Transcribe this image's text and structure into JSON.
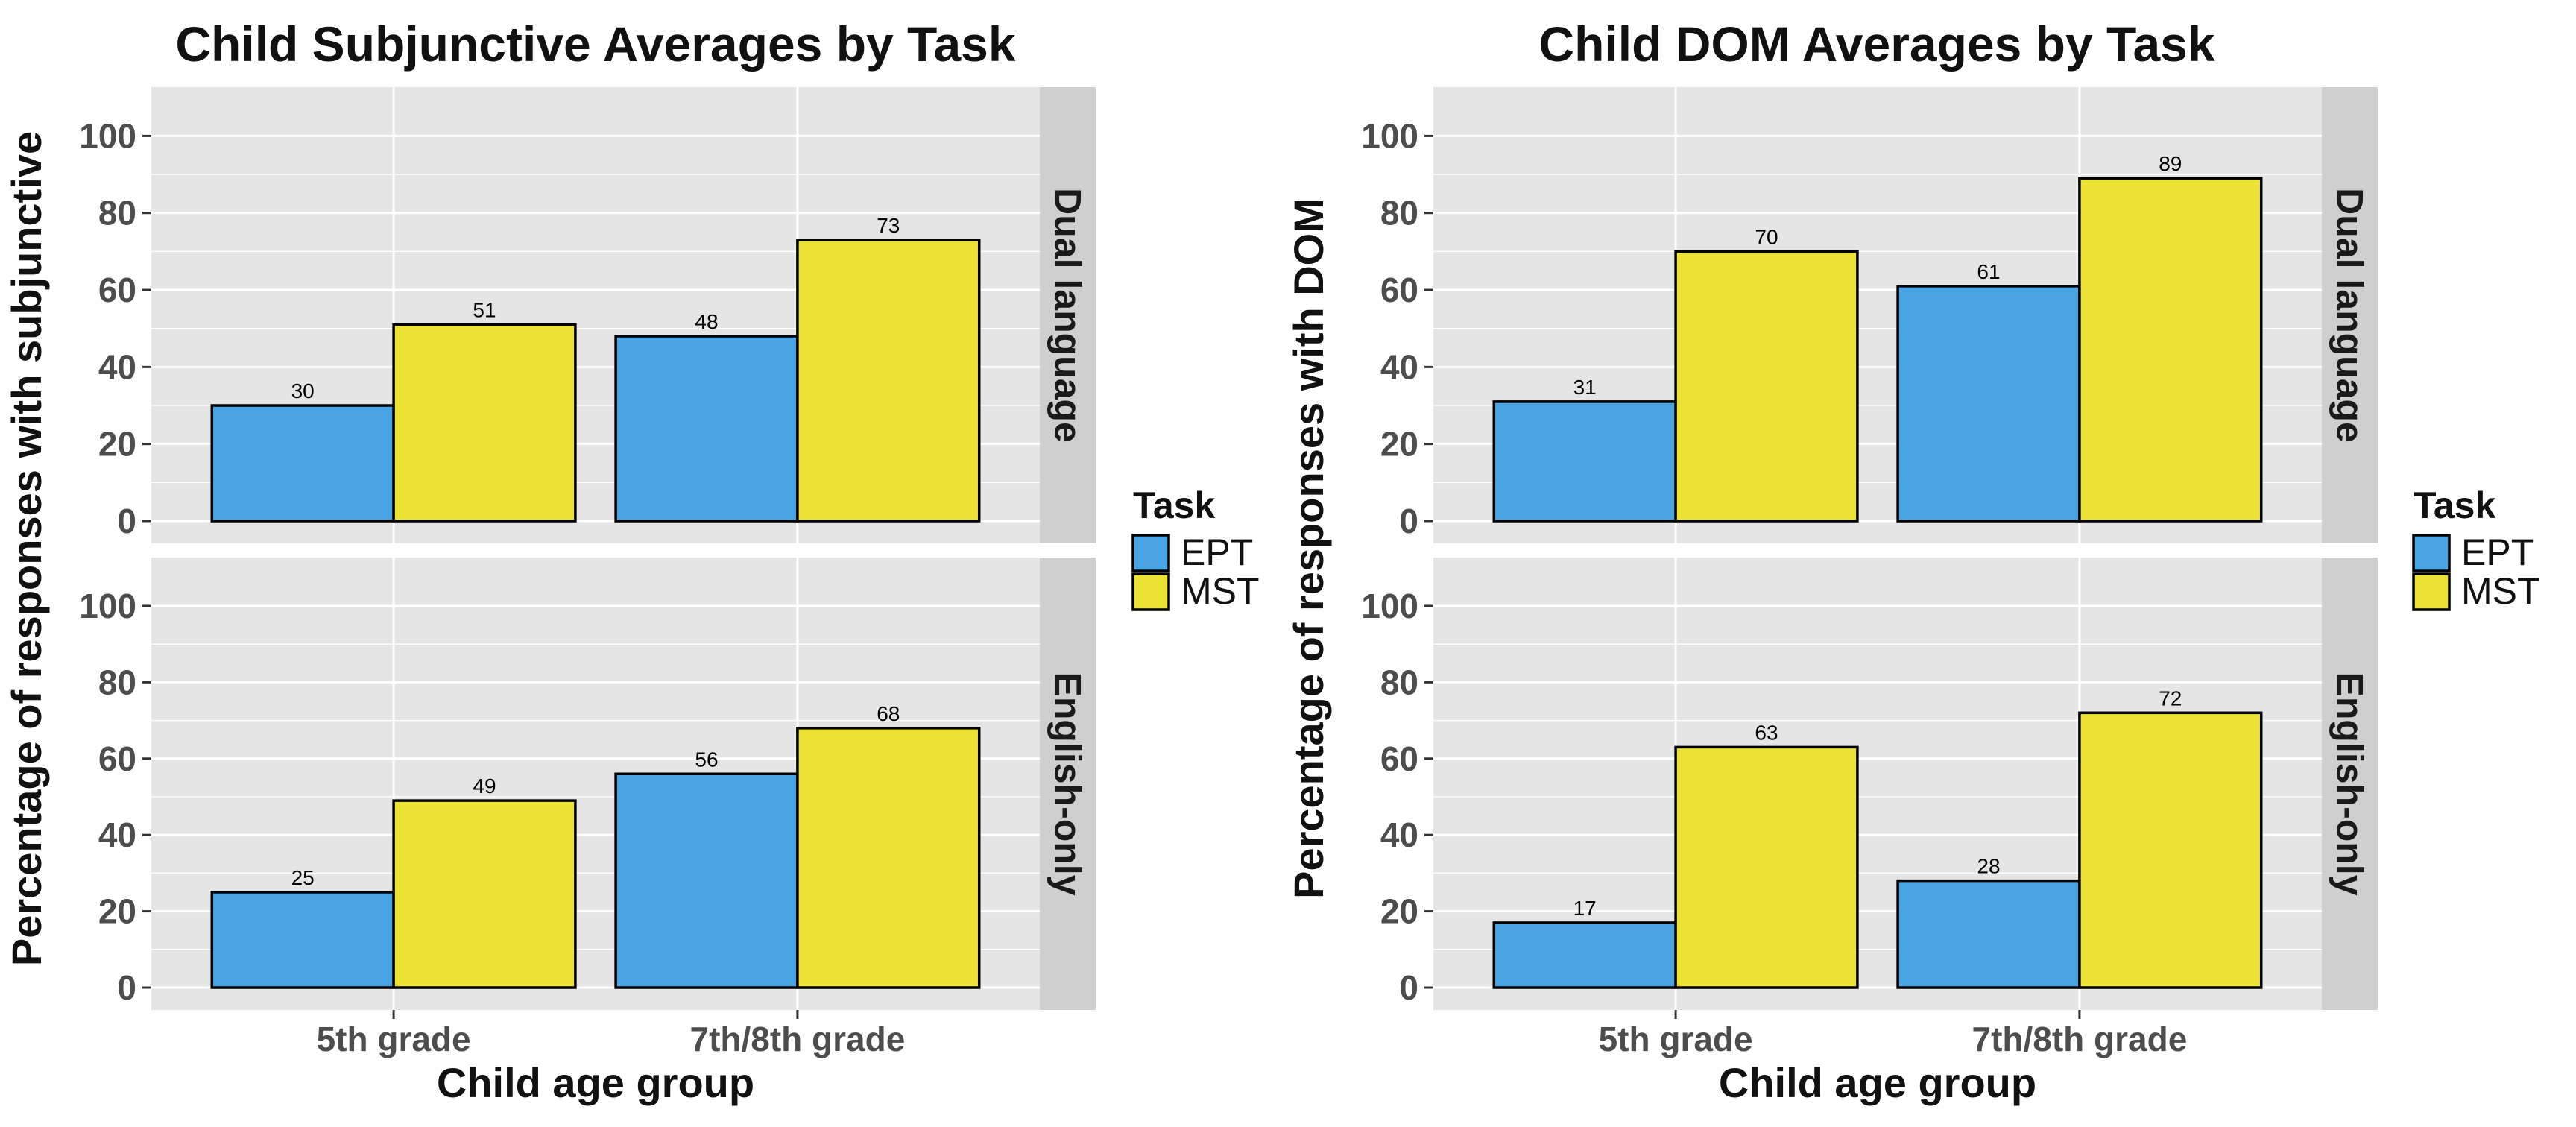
{
  "colors": {
    "EPT": "#48a4e2",
    "MST": "#ece135",
    "panel_bg": "#e5e5e5",
    "strip_bg": "#cfcfcf",
    "grid": "#ffffff",
    "text": "#222222",
    "axis_text": "#4d4d4d"
  },
  "chart_data": [
    {
      "type": "bar",
      "title": "Child Subjunctive Averages by Task",
      "xlabel": "Child age group",
      "ylabel": "Percentage of responses with subjunctive",
      "categories": [
        "5th grade",
        "7th/8th grade"
      ],
      "ylim": [
        0,
        110
      ],
      "yticks": [
        0,
        20,
        40,
        60,
        80,
        100
      ],
      "grid": true,
      "facets": [
        {
          "label": "Dual language",
          "series": [
            {
              "name": "EPT",
              "values": [
                30,
                48
              ]
            },
            {
              "name": "MST",
              "values": [
                51,
                73
              ]
            }
          ]
        },
        {
          "label": "English-only",
          "series": [
            {
              "name": "EPT",
              "values": [
                25,
                56
              ]
            },
            {
              "name": "MST",
              "values": [
                49,
                68
              ]
            }
          ]
        }
      ],
      "legend": {
        "title": "Task",
        "position": "right",
        "entries": [
          "EPT",
          "MST"
        ]
      }
    },
    {
      "type": "bar",
      "title": "Child DOM Averages by Task",
      "xlabel": "Child age group",
      "ylabel": "Percentage of responses with DOM",
      "categories": [
        "5th grade",
        "7th/8th grade"
      ],
      "ylim": [
        0,
        110
      ],
      "yticks": [
        0,
        20,
        40,
        60,
        80,
        100
      ],
      "grid": true,
      "facets": [
        {
          "label": "Dual language",
          "series": [
            {
              "name": "EPT",
              "values": [
                31,
                61
              ]
            },
            {
              "name": "MST",
              "values": [
                70,
                89
              ]
            }
          ]
        },
        {
          "label": "English-only",
          "series": [
            {
              "name": "EPT",
              "values": [
                17,
                28
              ]
            },
            {
              "name": "MST",
              "values": [
                63,
                72
              ]
            }
          ]
        }
      ],
      "legend": {
        "title": "Task",
        "position": "right",
        "entries": [
          "EPT",
          "MST"
        ]
      }
    }
  ]
}
